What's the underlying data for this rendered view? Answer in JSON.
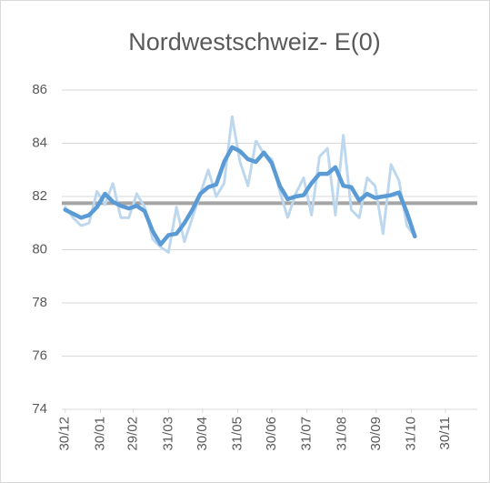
{
  "chart_data": {
    "type": "line",
    "title": "Nordwestschweiz- E(0)",
    "x": [
      0,
      7,
      14,
      21,
      28,
      35,
      42,
      49,
      56,
      63,
      70,
      77,
      84,
      91,
      98,
      105,
      112,
      119,
      126,
      133,
      140,
      147,
      154,
      161,
      168,
      175,
      182,
      189,
      196,
      203,
      210,
      217,
      224,
      231,
      238,
      245,
      252,
      259,
      266,
      273,
      280,
      287,
      294,
      301,
      308
    ],
    "series": [
      {
        "color": "#bdd7ee",
        "style": "dotted",
        "values": [
          81.6,
          81.2,
          80.9,
          81.0,
          82.2,
          81.7,
          82.5,
          81.2,
          81.2,
          82.1,
          81.6,
          80.4,
          80.1,
          79.9,
          81.6,
          80.3,
          81.2,
          82.1,
          83.0,
          82.0,
          82.5,
          85.0,
          83.3,
          82.4,
          84.1,
          83.6,
          83.4,
          82.2,
          81.2,
          82.1,
          82.7,
          81.3,
          83.5,
          83.8,
          81.3,
          84.3,
          81.5,
          81.2,
          82.7,
          82.4,
          80.6,
          83.2,
          82.6,
          80.9,
          80.5
        ]
      },
      {
        "color": "#5b9bd5",
        "style": "solid",
        "values": [
          81.5,
          81.35,
          81.2,
          81.3,
          81.6,
          82.1,
          81.8,
          81.65,
          81.55,
          81.65,
          81.45,
          80.7,
          80.2,
          80.55,
          80.6,
          81.0,
          81.5,
          82.1,
          82.35,
          82.45,
          83.3,
          83.85,
          83.7,
          83.4,
          83.3,
          83.65,
          83.25,
          82.4,
          81.9,
          82.0,
          82.05,
          82.5,
          82.85,
          82.85,
          83.1,
          82.4,
          82.35,
          81.85,
          82.1,
          81.95,
          82.0,
          82.05,
          82.15,
          81.4,
          80.5
        ]
      }
    ],
    "reference_lines": [
      {
        "value": 81.75,
        "color": "#a5a5a5"
      }
    ],
    "xlim": [
      -3,
      363
    ],
    "xticks": [
      {
        "value": 0,
        "label": "30/12"
      },
      {
        "value": 31,
        "label": "30/01"
      },
      {
        "value": 60,
        "label": "29/02"
      },
      {
        "value": 91,
        "label": "31/03"
      },
      {
        "value": 121,
        "label": "30/04"
      },
      {
        "value": 152,
        "label": "31/05"
      },
      {
        "value": 182,
        "label": "30/06"
      },
      {
        "value": 213,
        "label": "31/07"
      },
      {
        "value": 244,
        "label": "31/08"
      },
      {
        "value": 274,
        "label": "30/09"
      },
      {
        "value": 305,
        "label": "31/10"
      },
      {
        "value": 335,
        "label": "30/11"
      }
    ],
    "ylim": [
      74,
      86
    ],
    "yticks": [
      74,
      76,
      78,
      80,
      82,
      84,
      86
    ],
    "grid": true
  }
}
